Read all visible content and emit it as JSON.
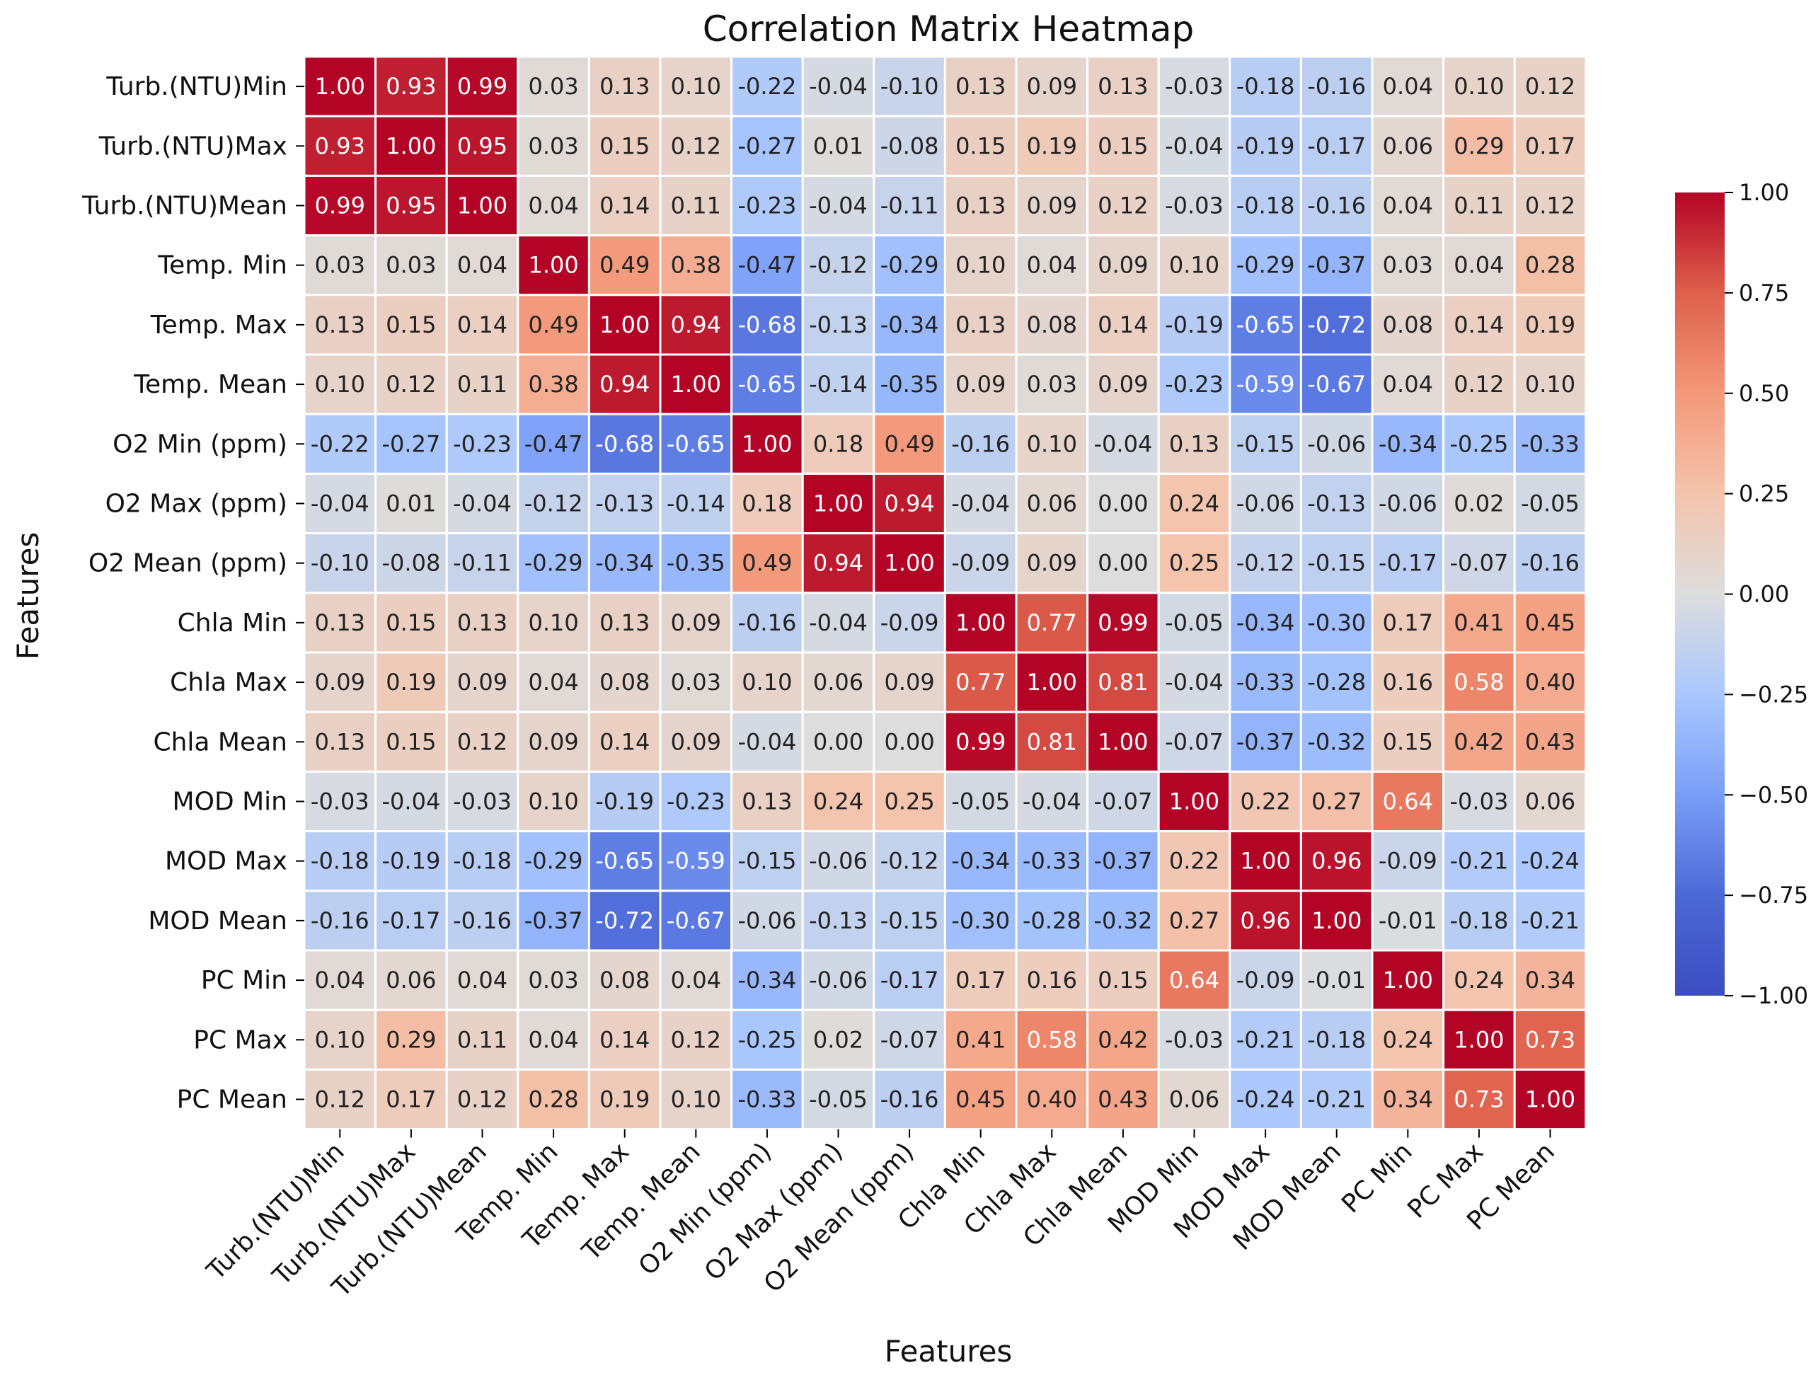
{
  "chart_data": {
    "type": "heatmap",
    "title": "Correlation Matrix Heatmap",
    "xlabel": "Features",
    "ylabel": "Features",
    "colormap": "coolwarm",
    "colors": {
      "low": "#3b4cc0",
      "mid": "#dddddd",
      "high": "#b40426"
    },
    "vmin": -1.0,
    "vmax": 1.0,
    "labels": [
      "Turb.(NTU)Min",
      "Turb.(NTU)Max",
      "Turb.(NTU)Mean",
      "Temp. Min",
      "Temp. Max",
      "Temp. Mean",
      "O2 Min (ppm)",
      "O2 Max (ppm)",
      "O2 Mean (ppm)",
      "Chla Min",
      "Chla Max",
      "Chla Mean",
      "MOD Min",
      "MOD Max",
      "MOD Mean",
      "PC Min",
      "PC Max",
      "PC Mean"
    ],
    "values": [
      [
        1.0,
        0.93,
        0.99,
        0.03,
        0.13,
        0.1,
        -0.22,
        -0.04,
        -0.1,
        0.13,
        0.09,
        0.13,
        -0.03,
        -0.18,
        -0.16,
        0.04,
        0.1,
        0.12
      ],
      [
        0.93,
        1.0,
        0.95,
        0.03,
        0.15,
        0.12,
        -0.27,
        0.01,
        -0.08,
        0.15,
        0.19,
        0.15,
        -0.04,
        -0.19,
        -0.17,
        0.06,
        0.29,
        0.17
      ],
      [
        0.99,
        0.95,
        1.0,
        0.04,
        0.14,
        0.11,
        -0.23,
        -0.04,
        -0.11,
        0.13,
        0.09,
        0.12,
        -0.03,
        -0.18,
        -0.16,
        0.04,
        0.11,
        0.12
      ],
      [
        0.03,
        0.03,
        0.04,
        1.0,
        0.49,
        0.38,
        -0.47,
        -0.12,
        -0.29,
        0.1,
        0.04,
        0.09,
        0.1,
        -0.29,
        -0.37,
        0.03,
        0.04,
        0.28
      ],
      [
        0.13,
        0.15,
        0.14,
        0.49,
        1.0,
        0.94,
        -0.68,
        -0.13,
        -0.34,
        0.13,
        0.08,
        0.14,
        -0.19,
        -0.65,
        -0.72,
        0.08,
        0.14,
        0.19
      ],
      [
        0.1,
        0.12,
        0.11,
        0.38,
        0.94,
        1.0,
        -0.65,
        -0.14,
        -0.35,
        0.09,
        0.03,
        0.09,
        -0.23,
        -0.59,
        -0.67,
        0.04,
        0.12,
        0.1
      ],
      [
        -0.22,
        -0.27,
        -0.23,
        -0.47,
        -0.68,
        -0.65,
        1.0,
        0.18,
        0.49,
        -0.16,
        0.1,
        -0.04,
        0.13,
        -0.15,
        -0.06,
        -0.34,
        -0.25,
        -0.33
      ],
      [
        -0.04,
        0.01,
        -0.04,
        -0.12,
        -0.13,
        -0.14,
        0.18,
        1.0,
        0.94,
        -0.04,
        0.06,
        0.0,
        0.24,
        -0.06,
        -0.13,
        -0.06,
        0.02,
        -0.05
      ],
      [
        -0.1,
        -0.08,
        -0.11,
        -0.29,
        -0.34,
        -0.35,
        0.49,
        0.94,
        1.0,
        -0.09,
        0.09,
        -0.0,
        0.25,
        -0.12,
        -0.15,
        -0.17,
        -0.07,
        -0.16
      ],
      [
        0.13,
        0.15,
        0.13,
        0.1,
        0.13,
        0.09,
        -0.16,
        -0.04,
        -0.09,
        1.0,
        0.77,
        0.99,
        -0.05,
        -0.34,
        -0.3,
        0.17,
        0.41,
        0.45
      ],
      [
        0.09,
        0.19,
        0.09,
        0.04,
        0.08,
        0.03,
        0.1,
        0.06,
        0.09,
        0.77,
        1.0,
        0.81,
        -0.04,
        -0.33,
        -0.28,
        0.16,
        0.58,
        0.4
      ],
      [
        0.13,
        0.15,
        0.12,
        0.09,
        0.14,
        0.09,
        -0.04,
        0.0,
        -0.0,
        0.99,
        0.81,
        1.0,
        -0.07,
        -0.37,
        -0.32,
        0.15,
        0.42,
        0.43
      ],
      [
        -0.03,
        -0.04,
        -0.03,
        0.1,
        -0.19,
        -0.23,
        0.13,
        0.24,
        0.25,
        -0.05,
        -0.04,
        -0.07,
        1.0,
        0.22,
        0.27,
        0.64,
        -0.03,
        0.06
      ],
      [
        -0.18,
        -0.19,
        -0.18,
        -0.29,
        -0.65,
        -0.59,
        -0.15,
        -0.06,
        -0.12,
        -0.34,
        -0.33,
        -0.37,
        0.22,
        1.0,
        0.96,
        -0.09,
        -0.21,
        -0.24
      ],
      [
        -0.16,
        -0.17,
        -0.16,
        -0.37,
        -0.72,
        -0.67,
        -0.06,
        -0.13,
        -0.15,
        -0.3,
        -0.28,
        -0.32,
        0.27,
        0.96,
        1.0,
        -0.01,
        -0.18,
        -0.21
      ],
      [
        0.04,
        0.06,
        0.04,
        0.03,
        0.08,
        0.04,
        -0.34,
        -0.06,
        -0.17,
        0.17,
        0.16,
        0.15,
        0.64,
        -0.09,
        -0.01,
        1.0,
        0.24,
        0.34
      ],
      [
        0.1,
        0.29,
        0.11,
        0.04,
        0.14,
        0.12,
        -0.25,
        0.02,
        -0.07,
        0.41,
        0.58,
        0.42,
        -0.03,
        -0.21,
        -0.18,
        0.24,
        1.0,
        0.73
      ],
      [
        0.12,
        0.17,
        0.12,
        0.28,
        0.19,
        0.1,
        -0.33,
        -0.05,
        -0.16,
        0.45,
        0.4,
        0.43,
        0.06,
        -0.24,
        -0.21,
        0.34,
        0.73,
        1.0
      ]
    ],
    "colorbar": {
      "ticks": [
        1.0,
        0.75,
        0.5,
        0.25,
        0.0,
        -0.25,
        -0.5,
        -0.75,
        -1.0
      ],
      "tick_labels": [
        "1.00",
        "0.75",
        "0.50",
        "0.25",
        "0.00",
        "−0.25",
        "−0.50",
        "−0.75",
        "−1.00"
      ]
    }
  }
}
